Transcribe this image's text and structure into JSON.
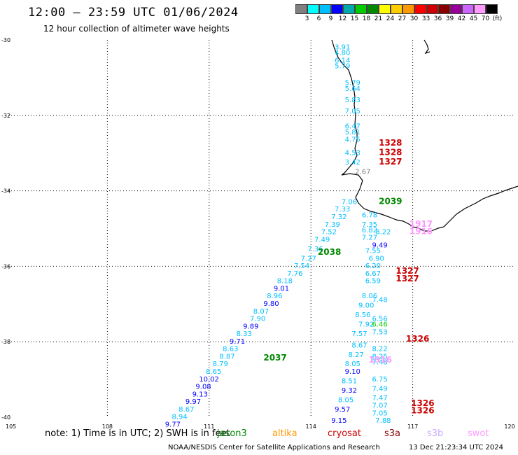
{
  "header": {
    "title": "12:00 — 23:59 UTC 01/06/2024",
    "subtitle": "12 hour collection of altimeter wave heights"
  },
  "legend": {
    "colors": [
      "#808080",
      "#00ffff",
      "#00bfff",
      "#0000ff",
      "#00aaaa",
      "#00cc00",
      "#008800",
      "#ffff00",
      "#ffcc00",
      "#ff9900",
      "#ff0000",
      "#cc0000",
      "#880000",
      "#990099",
      "#cc66ff",
      "#ff99ff",
      "#000000"
    ],
    "labels": [
      "3",
      "6",
      "9",
      "12",
      "15",
      "18",
      "21",
      "24",
      "27",
      "30",
      "33",
      "36",
      "39",
      "42",
      "45",
      "70",
      "(ft)"
    ]
  },
  "axes": {
    "lat_labels": [
      "-30",
      "-32",
      "-34",
      "-36",
      "-38",
      "-40"
    ],
    "lon_labels": [
      "105",
      "108",
      "111",
      "114",
      "117",
      "120"
    ]
  },
  "note": "note:  1) Time is in UTC; 2) SWH is in feet",
  "satellites": [
    {
      "name": "jason3",
      "color": "#008800"
    },
    {
      "name": "altika",
      "color": "#ff9900"
    },
    {
      "name": "cryosat",
      "color": "#cc0000"
    },
    {
      "name": "s3a",
      "color": "#880000"
    },
    {
      "name": "s3b",
      "color": "#ccaaff"
    },
    {
      "name": "swot",
      "color": "#ff99ff"
    }
  ],
  "credit": "NOAA/NESDIS Center for Satellite Applications and Research",
  "timestamp": "13 Dec 21:23:34 UTC 2024",
  "pass_labels": [
    {
      "text": "1328",
      "lon": 116.0,
      "lat": -32.8,
      "color": "#cc0000"
    },
    {
      "text": "1328",
      "lon": 116.0,
      "lat": -33.05,
      "color": "#cc0000"
    },
    {
      "text": "1327",
      "lon": 116.0,
      "lat": -33.3,
      "color": "#cc0000"
    },
    {
      "text": "2039",
      "lon": 116.0,
      "lat": -34.35,
      "color": "#008800"
    },
    {
      "text": "1917",
      "lon": 116.9,
      "lat": -34.95,
      "color": "#ff99ff"
    },
    {
      "text": "1916",
      "lon": 116.9,
      "lat": -35.15,
      "color": "#ff99ff"
    },
    {
      "text": "2038",
      "lon": 114.2,
      "lat": -35.7,
      "color": "#008800"
    },
    {
      "text": "1327",
      "lon": 116.5,
      "lat": -36.2,
      "color": "#cc0000"
    },
    {
      "text": "1327",
      "lon": 116.5,
      "lat": -36.4,
      "color": "#cc0000"
    },
    {
      "text": "1326",
      "lon": 116.8,
      "lat": -38.0,
      "color": "#cc0000"
    },
    {
      "text": "2037",
      "lon": 112.6,
      "lat": -38.5,
      "color": "#008800"
    },
    {
      "text": "1916",
      "lon": 115.7,
      "lat": -38.55,
      "color": "#ff99ff"
    },
    {
      "text": "1326",
      "lon": 116.95,
      "lat": -39.7,
      "color": "#cc0000"
    },
    {
      "text": "1326",
      "lon": 116.95,
      "lat": -39.9,
      "color": "#cc0000"
    }
  ],
  "wave_heights": [
    {
      "v": "3.91",
      "lon": 114.7,
      "lat": -30.25,
      "c": "#00bfff"
    },
    {
      "v": "4.80",
      "lon": 114.7,
      "lat": -30.4,
      "c": "#00bfff"
    },
    {
      "v": "6.14",
      "lon": 114.7,
      "lat": -30.6,
      "c": "#00bfff"
    },
    {
      "v": "5.79",
      "lon": 114.7,
      "lat": -30.75,
      "c": "#00bfff"
    },
    {
      "v": "5.79",
      "lon": 115.0,
      "lat": -31.2,
      "c": "#00bfff"
    },
    {
      "v": "5.64",
      "lon": 115.0,
      "lat": -31.35,
      "c": "#00bfff"
    },
    {
      "v": "5.83",
      "lon": 115.0,
      "lat": -31.65,
      "c": "#00bfff"
    },
    {
      "v": "7.05",
      "lon": 115.0,
      "lat": -31.95,
      "c": "#00bfff"
    },
    {
      "v": "6.47",
      "lon": 115.0,
      "lat": -32.35,
      "c": "#00bfff"
    },
    {
      "v": "5.81",
      "lon": 115.0,
      "lat": -32.5,
      "c": "#00bfff"
    },
    {
      "v": "4.75",
      "lon": 115.0,
      "lat": -32.7,
      "c": "#00bfff"
    },
    {
      "v": "4.53",
      "lon": 115.0,
      "lat": -33.05,
      "c": "#00bfff"
    },
    {
      "v": "3.42",
      "lon": 115.0,
      "lat": -33.3,
      "c": "#00bfff"
    },
    {
      "v": "2.67",
      "lon": 115.3,
      "lat": -33.55,
      "c": "#808080"
    },
    {
      "v": "7.06",
      "lon": 114.9,
      "lat": -34.35,
      "c": "#00bfff"
    },
    {
      "v": "7.33",
      "lon": 114.7,
      "lat": -34.55,
      "c": "#00bfff"
    },
    {
      "v": "7.32",
      "lon": 114.6,
      "lat": -34.75,
      "c": "#00bfff"
    },
    {
      "v": "6.78",
      "lon": 115.5,
      "lat": -34.7,
      "c": "#00bfff"
    },
    {
      "v": "7.39",
      "lon": 114.4,
      "lat": -34.95,
      "c": "#00bfff"
    },
    {
      "v": "7.35",
      "lon": 115.5,
      "lat": -34.95,
      "c": "#00bfff"
    },
    {
      "v": "7.52",
      "lon": 114.3,
      "lat": -35.15,
      "c": "#00bfff"
    },
    {
      "v": "6.82",
      "lon": 115.5,
      "lat": -35.1,
      "c": "#00bfff"
    },
    {
      "v": "8.22",
      "lon": 115.9,
      "lat": -35.15,
      "c": "#00bfff"
    },
    {
      "v": "7.49",
      "lon": 114.1,
      "lat": -35.35,
      "c": "#00bfff"
    },
    {
      "v": "7.27",
      "lon": 115.5,
      "lat": -35.3,
      "c": "#00bfff"
    },
    {
      "v": "9.49",
      "lon": 115.8,
      "lat": -35.5,
      "c": "#0000ff"
    },
    {
      "v": "7.36",
      "lon": 113.9,
      "lat": -35.6,
      "c": "#00bfff"
    },
    {
      "v": "7.55",
      "lon": 115.6,
      "lat": -35.65,
      "c": "#00bfff"
    },
    {
      "v": "7.27",
      "lon": 113.7,
      "lat": -35.85,
      "c": "#00bfff"
    },
    {
      "v": "6.90",
      "lon": 115.7,
      "lat": -35.85,
      "c": "#00bfff"
    },
    {
      "v": "7.54",
      "lon": 113.5,
      "lat": -36.05,
      "c": "#00bfff"
    },
    {
      "v": "6.20",
      "lon": 115.6,
      "lat": -36.05,
      "c": "#00bfff"
    },
    {
      "v": "7.76",
      "lon": 113.3,
      "lat": -36.25,
      "c": "#00bfff"
    },
    {
      "v": "6.67",
      "lon": 115.6,
      "lat": -36.25,
      "c": "#00bfff"
    },
    {
      "v": "8.18",
      "lon": 113.0,
      "lat": -36.45,
      "c": "#00bfff"
    },
    {
      "v": "6.59",
      "lon": 115.6,
      "lat": -36.45,
      "c": "#00bfff"
    },
    {
      "v": "9.01",
      "lon": 112.9,
      "lat": -36.65,
      "c": "#0000ff"
    },
    {
      "v": "8.96",
      "lon": 112.7,
      "lat": -36.85,
      "c": "#00bfff"
    },
    {
      "v": "8.06",
      "lon": 115.5,
      "lat": -36.85,
      "c": "#00bfff"
    },
    {
      "v": "9.80",
      "lon": 112.6,
      "lat": -37.05,
      "c": "#0000ff"
    },
    {
      "v": "7.48",
      "lon": 115.8,
      "lat": -36.95,
      "c": "#00bfff"
    },
    {
      "v": "9.00",
      "lon": 115.4,
      "lat": -37.1,
      "c": "#00bfff"
    },
    {
      "v": "8.07",
      "lon": 112.3,
      "lat": -37.25,
      "c": "#00bfff"
    },
    {
      "v": "8.56",
      "lon": 115.3,
      "lat": -37.35,
      "c": "#00bfff"
    },
    {
      "v": "7.90",
      "lon": 112.2,
      "lat": -37.45,
      "c": "#00bfff"
    },
    {
      "v": "6.56",
      "lon": 115.8,
      "lat": -37.45,
      "c": "#00bfff"
    },
    {
      "v": "9.89",
      "lon": 112.0,
      "lat": -37.65,
      "c": "#0000ff"
    },
    {
      "v": "7.92",
      "lon": 115.4,
      "lat": -37.6,
      "c": "#00bfff"
    },
    {
      "v": "6.46",
      "lon": 115.8,
      "lat": -37.6,
      "c": "#00cc00"
    },
    {
      "v": "8.33",
      "lon": 111.8,
      "lat": -37.85,
      "c": "#00bfff"
    },
    {
      "v": "7.53",
      "lon": 115.8,
      "lat": -37.8,
      "c": "#00bfff"
    },
    {
      "v": "7.57",
      "lon": 115.2,
      "lat": -37.85,
      "c": "#00bfff"
    },
    {
      "v": "9.71",
      "lon": 111.6,
      "lat": -38.05,
      "c": "#0000ff"
    },
    {
      "v": "8.63",
      "lon": 111.4,
      "lat": -38.25,
      "c": "#00bfff"
    },
    {
      "v": "8.67",
      "lon": 115.2,
      "lat": -38.15,
      "c": "#00bfff"
    },
    {
      "v": "8.22",
      "lon": 115.8,
      "lat": -38.25,
      "c": "#00bfff"
    },
    {
      "v": "8.87",
      "lon": 111.3,
      "lat": -38.45,
      "c": "#00bfff"
    },
    {
      "v": "8.27",
      "lon": 115.1,
      "lat": -38.4,
      "c": "#00bfff"
    },
    {
      "v": "8.25",
      "lon": 115.8,
      "lat": -38.45,
      "c": "#00bfff"
    },
    {
      "v": "8.79",
      "lon": 111.1,
      "lat": -38.65,
      "c": "#00bfff"
    },
    {
      "v": "8.05",
      "lon": 115.0,
      "lat": -38.65,
      "c": "#00bfff"
    },
    {
      "v": "7.48",
      "lon": 115.8,
      "lat": -38.6,
      "c": "#00bfff"
    },
    {
      "v": "8.65",
      "lon": 110.9,
      "lat": -38.85,
      "c": "#00bfff"
    },
    {
      "v": "9.10",
      "lon": 115.0,
      "lat": -38.85,
      "c": "#0000ff"
    },
    {
      "v": "10.02",
      "lon": 110.7,
      "lat": -39.05,
      "c": "#0000ff"
    },
    {
      "v": "8.51",
      "lon": 114.9,
      "lat": -39.1,
      "c": "#00bfff"
    },
    {
      "v": "6.75",
      "lon": 115.8,
      "lat": -39.05,
      "c": "#00bfff"
    },
    {
      "v": "9.08",
      "lon": 110.6,
      "lat": -39.25,
      "c": "#0000ff"
    },
    {
      "v": "9.32",
      "lon": 114.9,
      "lat": -39.35,
      "c": "#0000ff"
    },
    {
      "v": "7.49",
      "lon": 115.8,
      "lat": -39.3,
      "c": "#00bfff"
    },
    {
      "v": "9.13",
      "lon": 110.5,
      "lat": -39.45,
      "c": "#0000ff"
    },
    {
      "v": "8.05",
      "lon": 114.8,
      "lat": -39.6,
      "c": "#00bfff"
    },
    {
      "v": "7.47",
      "lon": 115.8,
      "lat": -39.55,
      "c": "#00bfff"
    },
    {
      "v": "9.97",
      "lon": 110.3,
      "lat": -39.65,
      "c": "#0000ff"
    },
    {
      "v": "7.07",
      "lon": 115.8,
      "lat": -39.75,
      "c": "#00bfff"
    },
    {
      "v": "8.67",
      "lon": 110.1,
      "lat": -39.85,
      "c": "#00bfff"
    },
    {
      "v": "9.57",
      "lon": 114.7,
      "lat": -39.85,
      "c": "#0000ff"
    },
    {
      "v": "7.05",
      "lon": 115.8,
      "lat": -39.95,
      "c": "#00bfff"
    },
    {
      "v": "8.94",
      "lon": 109.9,
      "lat": -40.05,
      "c": "#00bfff"
    },
    {
      "v": "9.77",
      "lon": 109.7,
      "lat": -40.25,
      "c": "#0000ff"
    },
    {
      "v": "9.15",
      "lon": 114.6,
      "lat": -40.15,
      "c": "#0000ff"
    },
    {
      "v": "7.88",
      "lon": 115.9,
      "lat": -40.15,
      "c": "#00bfff"
    }
  ]
}
